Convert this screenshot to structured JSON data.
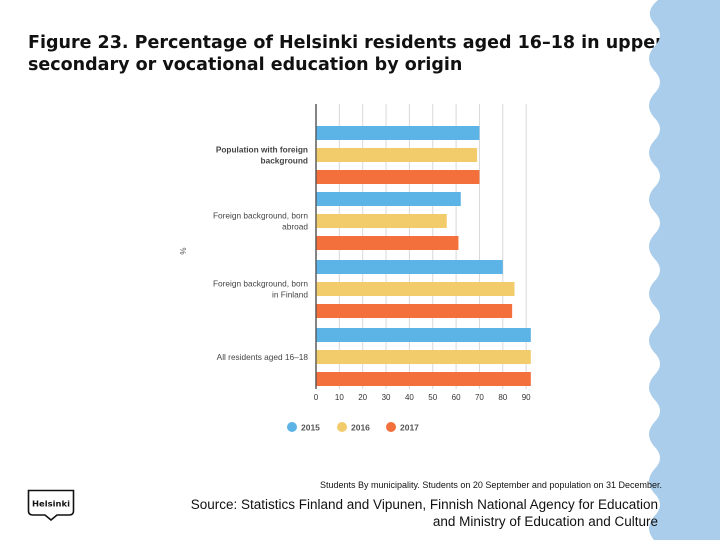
{
  "page": {
    "title": "Figure 23. Percentage of Helsinki residents aged 16–18 in upper secondary or vocational education by origin",
    "footnote": "Students By municipality. Students on 20 September and population on 31 December.",
    "source_line1": "Source: Statistics Finland and Vipunen, Finnish National Agency for Education",
    "source_line2": "and Ministry of Education and Culture",
    "logo_text": "Helsinki"
  },
  "chart_data": {
    "type": "bar",
    "orientation": "horizontal",
    "categories": [
      "Population with foreign background",
      "Foreign background, born abroad",
      "Foreign background, born in Finland",
      "All residents aged 16–18"
    ],
    "category_label_lines": [
      [
        "Population with foreign",
        "background"
      ],
      [
        "Foreign background, born",
        "abroad"
      ],
      [
        "Foreign background, born",
        "in Finland"
      ],
      [
        "All residents aged 16–18"
      ]
    ],
    "category_label_bold": [
      true,
      false,
      false,
      false
    ],
    "series": [
      {
        "name": "2015",
        "color": "#5BB3E6",
        "values": [
          70,
          62,
          80,
          92
        ]
      },
      {
        "name": "2016",
        "color": "#F2CC6B",
        "values": [
          69,
          56,
          85,
          92
        ]
      },
      {
        "name": "2017",
        "color": "#F36F3B",
        "values": [
          70,
          61,
          84,
          92
        ]
      }
    ],
    "x_ticks": [
      0,
      10,
      20,
      30,
      40,
      50,
      60,
      70,
      80,
      90
    ],
    "xlim": [
      0,
      92
    ],
    "ylabel": "%",
    "grid": true,
    "legend_position": "bottom"
  }
}
